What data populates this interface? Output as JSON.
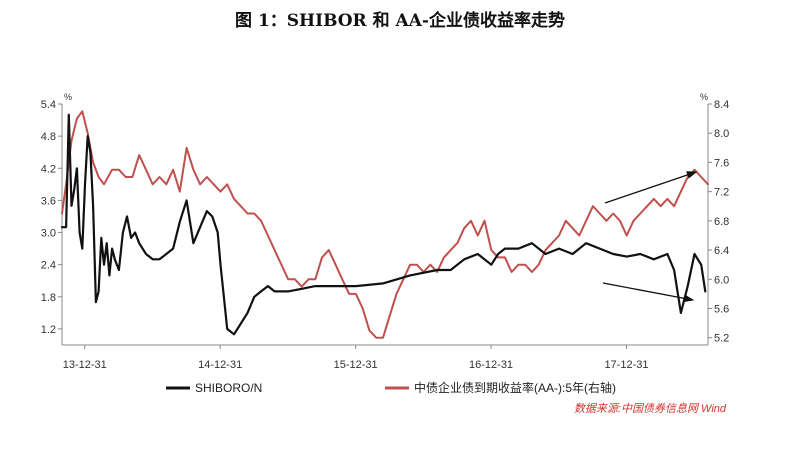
{
  "chart_data": {
    "type": "line",
    "title": "图 1：SHIBOR 和 AA-企业债收益率走势",
    "y_left_unit": "%",
    "y_right_unit": "%",
    "y_left_ticks": [
      "1.2",
      "1.8",
      "2.4",
      "3.0",
      "3.6",
      "4.2",
      "4.8",
      "5.4"
    ],
    "y_left_lim": [
      0.9,
      5.4
    ],
    "y_right_ticks": [
      "5.2",
      "5.6",
      "6.0",
      "6.4",
      "6.8",
      "7.2",
      "7.6",
      "8.0",
      "8.4"
    ],
    "y_right_lim": [
      5.1,
      8.4
    ],
    "x_ticks": [
      "13-12-31",
      "14-12-31",
      "15-12-31",
      "16-12-31",
      "17-12-31"
    ],
    "x_lim": [
      2013.83,
      2018.6
    ],
    "source": "数据来源:中国债券信息网 Wind",
    "grid": false,
    "legend_position": "bottom",
    "colors": {
      "shibor": "#111111",
      "bond": "#c0504d",
      "axis": "#888888",
      "arrow": "#111111"
    },
    "series": [
      {
        "name": "SHIBORO/N",
        "axis": "left",
        "x": [
          2013.83,
          2013.86,
          2013.88,
          2013.9,
          2013.92,
          2013.94,
          2013.96,
          2013.98,
          2014.0,
          2014.02,
          2014.04,
          2014.06,
          2014.08,
          2014.1,
          2014.12,
          2014.14,
          2014.16,
          2014.18,
          2014.2,
          2014.22,
          2014.25,
          2014.28,
          2014.31,
          2014.34,
          2014.37,
          2014.4,
          2014.45,
          2014.5,
          2014.55,
          2014.6,
          2014.65,
          2014.7,
          2014.75,
          2014.8,
          2014.85,
          2014.9,
          2014.94,
          2014.98,
          2015.0,
          2015.05,
          2015.1,
          2015.15,
          2015.2,
          2015.25,
          2015.3,
          2015.35,
          2015.4,
          2015.45,
          2015.5,
          2015.6,
          2015.7,
          2015.8,
          2015.9,
          2016.0,
          2016.2,
          2016.4,
          2016.6,
          2016.7,
          2016.8,
          2016.9,
          2017.0,
          2017.05,
          2017.1,
          2017.2,
          2017.3,
          2017.4,
          2017.5,
          2017.6,
          2017.7,
          2017.8,
          2017.9,
          2018.0,
          2018.1,
          2018.2,
          2018.3,
          2018.35,
          2018.4,
          2018.45,
          2018.5,
          2018.55,
          2018.58
        ],
        "y": [
          3.1,
          3.1,
          5.2,
          3.5,
          3.8,
          4.2,
          3.0,
          2.7,
          3.9,
          4.8,
          4.5,
          3.5,
          1.7,
          1.9,
          2.9,
          2.4,
          2.8,
          2.2,
          2.7,
          2.5,
          2.3,
          3.0,
          3.3,
          2.9,
          3.0,
          2.8,
          2.6,
          2.5,
          2.5,
          2.6,
          2.7,
          3.2,
          3.6,
          2.8,
          3.1,
          3.4,
          3.3,
          3.0,
          2.4,
          1.2,
          1.1,
          1.3,
          1.5,
          1.8,
          1.9,
          2.0,
          1.9,
          1.9,
          1.9,
          1.95,
          2.0,
          2.0,
          2.0,
          2.0,
          2.05,
          2.2,
          2.3,
          2.3,
          2.5,
          2.6,
          2.4,
          2.6,
          2.7,
          2.7,
          2.8,
          2.6,
          2.7,
          2.6,
          2.8,
          2.7,
          2.6,
          2.55,
          2.6,
          2.5,
          2.6,
          2.3,
          1.5,
          2.0,
          2.6,
          2.4,
          1.9
        ]
      },
      {
        "name": "中债企业债到期收益率(AA-):5年(右轴)",
        "axis": "right",
        "x": [
          2013.83,
          2013.86,
          2013.9,
          2013.94,
          2013.98,
          2014.02,
          2014.06,
          2014.1,
          2014.14,
          2014.2,
          2014.25,
          2014.3,
          2014.35,
          2014.4,
          2014.45,
          2014.5,
          2014.55,
          2014.6,
          2014.65,
          2014.7,
          2014.75,
          2014.8,
          2014.85,
          2014.9,
          2014.95,
          2015.0,
          2015.05,
          2015.1,
          2015.15,
          2015.2,
          2015.25,
          2015.3,
          2015.35,
          2015.4,
          2015.45,
          2015.5,
          2015.55,
          2015.6,
          2015.65,
          2015.7,
          2015.75,
          2015.8,
          2015.85,
          2015.9,
          2015.95,
          2016.0,
          2016.05,
          2016.1,
          2016.15,
          2016.2,
          2016.25,
          2016.3,
          2016.35,
          2016.4,
          2016.45,
          2016.5,
          2016.55,
          2016.6,
          2016.65,
          2016.7,
          2016.75,
          2016.8,
          2016.85,
          2016.9,
          2016.95,
          2017.0,
          2017.05,
          2017.1,
          2017.15,
          2017.2,
          2017.25,
          2017.3,
          2017.35,
          2017.4,
          2017.45,
          2017.5,
          2017.55,
          2017.6,
          2017.65,
          2017.7,
          2017.75,
          2017.8,
          2017.85,
          2017.9,
          2017.95,
          2018.0,
          2018.05,
          2018.1,
          2018.15,
          2018.2,
          2018.25,
          2018.3,
          2018.35,
          2018.4,
          2018.45,
          2018.5,
          2018.55,
          2018.6
        ],
        "y": [
          6.9,
          7.3,
          7.9,
          8.2,
          8.3,
          8.0,
          7.6,
          7.4,
          7.3,
          7.5,
          7.5,
          7.4,
          7.4,
          7.7,
          7.5,
          7.3,
          7.4,
          7.3,
          7.5,
          7.2,
          7.8,
          7.5,
          7.3,
          7.4,
          7.3,
          7.2,
          7.3,
          7.1,
          7.0,
          6.9,
          6.9,
          6.8,
          6.6,
          6.4,
          6.2,
          6.0,
          6.0,
          5.9,
          6.0,
          6.0,
          6.3,
          6.4,
          6.2,
          6.0,
          5.8,
          5.8,
          5.6,
          5.3,
          5.2,
          5.2,
          5.5,
          5.8,
          6.0,
          6.2,
          6.2,
          6.1,
          6.2,
          6.1,
          6.3,
          6.4,
          6.5,
          6.7,
          6.8,
          6.6,
          6.8,
          6.4,
          6.3,
          6.3,
          6.1,
          6.2,
          6.2,
          6.1,
          6.2,
          6.4,
          6.5,
          6.6,
          6.8,
          6.7,
          6.6,
          6.8,
          7.0,
          6.9,
          6.8,
          6.9,
          6.8,
          6.6,
          6.8,
          6.9,
          7.0,
          7.1,
          7.0,
          7.1,
          7.0,
          7.2,
          7.4,
          7.5,
          7.4,
          7.3
        ]
      }
    ]
  }
}
